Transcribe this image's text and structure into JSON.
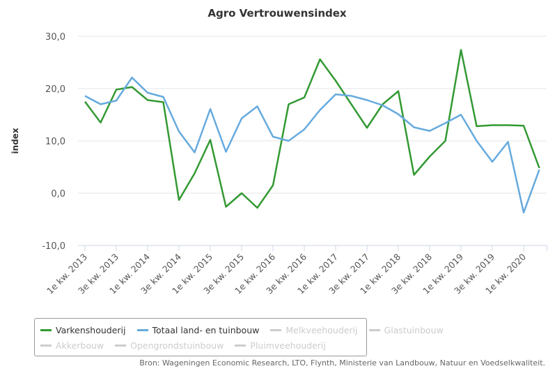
{
  "chart_data": {
    "type": "line",
    "title": "Agro Vertrouwensindex",
    "ylabel": "index",
    "xlabel": "",
    "ylim": [
      -10,
      30
    ],
    "yticks": [
      "-10,0",
      "0,0",
      "10,0",
      "20,0",
      "30,0"
    ],
    "ytick_values": [
      -10,
      0,
      10,
      20,
      30
    ],
    "grid": true,
    "x": [
      "1e kw. 2013",
      "2e kw. 2013",
      "3e kw. 2013",
      "4e kw. 2013",
      "1e kw. 2014",
      "2e kw. 2014",
      "3e kw. 2014",
      "4e kw. 2014",
      "1e kw. 2015",
      "2e kw. 2015",
      "3e kw. 2015",
      "4e kw. 2015",
      "1e kw. 2016",
      "2e kw. 2016",
      "3e kw. 2016",
      "4e kw. 2016",
      "1e kw. 2017",
      "2e kw. 2017",
      "3e kw. 2017",
      "4e kw. 2017",
      "1e kw. 2018",
      "2e kw. 2018",
      "3e kw. 2018",
      "4e kw. 2018",
      "1e kw. 2019",
      "2e kw. 2019",
      "3e kw. 2019",
      "4e kw. 2019",
      "1e kw. 2020",
      "2e kw. 2020"
    ],
    "xtick_labels": [
      "1e kw. 2013",
      "3e kw. 2013",
      "1e kw. 2014",
      "3e kw. 2014",
      "1e kw. 2015",
      "3e kw. 2015",
      "1e kw. 2016",
      "3e kw. 2016",
      "1e kw. 2017",
      "3e kw. 2017",
      "1e kw. 2018",
      "3e kw. 2018",
      "1e kw. 2019",
      "3e kw. 2019",
      "1e kw. 2020"
    ],
    "series": [
      {
        "name": "Varkenshouderij",
        "color": "#339933",
        "visible": true,
        "values": [
          17.5,
          13.5,
          19.8,
          20.3,
          17.8,
          17.4,
          -1.3,
          3.8,
          10.2,
          -2.6,
          0,
          -2.8,
          1.5,
          17,
          18.3,
          25.6,
          21.5,
          17,
          12.5,
          17,
          19.5,
          3.5,
          7,
          10,
          27.4,
          12.8,
          13,
          13,
          12.9,
          4.8
        ]
      },
      {
        "name": "Totaal land- en tuinbouw",
        "color": "#66aadd",
        "visible": true,
        "values": [
          18.6,
          17,
          17.7,
          22.1,
          19.2,
          18.4,
          11.8,
          7.8,
          16.1,
          7.9,
          14.3,
          16.6,
          10.8,
          10,
          12.2,
          15.9,
          18.9,
          18.6,
          17.8,
          16.8,
          15.1,
          12.6,
          11.9,
          13.4,
          15,
          10,
          6,
          9.8,
          -3.7,
          4.5
        ]
      }
    ],
    "legend": {
      "placement": "bottom",
      "items": [
        {
          "name": "Varkenshouderij",
          "active": true,
          "color": "#339933"
        },
        {
          "name": "Totaal land- en tuinbouw",
          "active": true,
          "color": "#66aadd"
        },
        {
          "name": "Melkveehouderij",
          "active": false,
          "color": "#cccccc"
        },
        {
          "name": "Glastuinbouw",
          "active": false,
          "color": "#cccccc"
        },
        {
          "name": "Akkerbouw",
          "active": false,
          "color": "#cccccc"
        },
        {
          "name": "Opengrondstuinbouw",
          "active": false,
          "color": "#cccccc"
        },
        {
          "name": "Pluimveehouderij",
          "active": false,
          "color": "#cccccc"
        }
      ]
    },
    "source": "Bron: Wageningen Economic Research, LTO, Flynth, Ministerie van Landbouw, Natuur en Voedselkwaliteit."
  }
}
